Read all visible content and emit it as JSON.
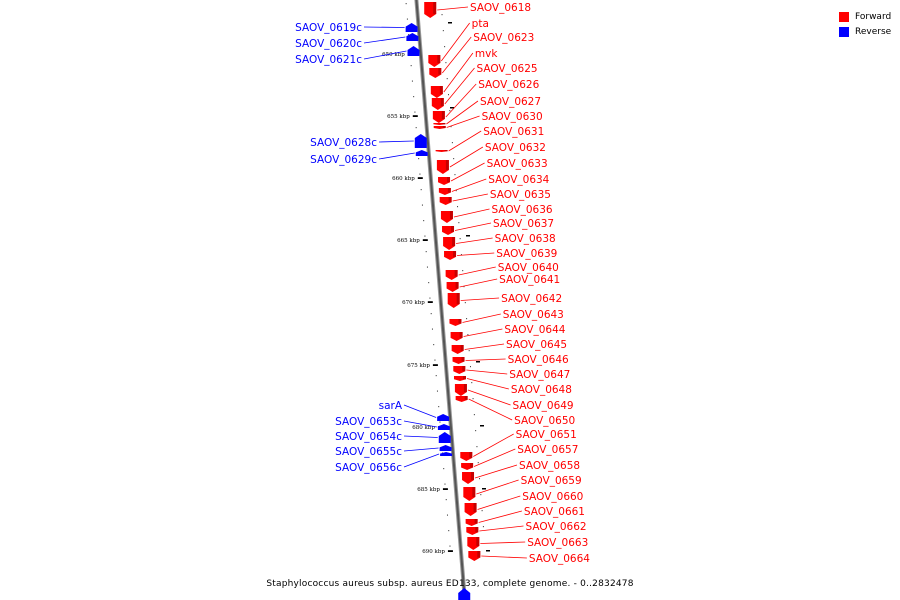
{
  "legend": {
    "forward_label": "Forward",
    "reverse_label": "Reverse",
    "forward_color": "#ff0000",
    "reverse_color": "#0000ff"
  },
  "caption": "Staphylococcus aureus subsp. aureus ED133, complete genome. - 0..2832478",
  "ticks": [
    {
      "label": "650 kbp",
      "kbp": 650
    },
    {
      "label": "655 kbp",
      "kbp": 655
    },
    {
      "label": "660 kbp",
      "kbp": 660
    },
    {
      "label": "665 kbp",
      "kbp": 665
    },
    {
      "label": "670 kbp",
      "kbp": 670
    },
    {
      "label": "675 kbp",
      "kbp": 675
    },
    {
      "label": "680 kbp",
      "kbp": 680
    },
    {
      "label": "685 kbp",
      "kbp": 685
    },
    {
      "label": "690 kbp",
      "kbp": 690
    }
  ],
  "forward_genes": [
    {
      "name": "SAOV_0618"
    },
    {
      "name": "pta"
    },
    {
      "name": "SAOV_0623"
    },
    {
      "name": "mvk"
    },
    {
      "name": "SAOV_0625"
    },
    {
      "name": "SAOV_0626"
    },
    {
      "name": "SAOV_0627"
    },
    {
      "name": "SAOV_0630"
    },
    {
      "name": "SAOV_0631"
    },
    {
      "name": "SAOV_0632"
    },
    {
      "name": "SAOV_0633"
    },
    {
      "name": "SAOV_0634"
    },
    {
      "name": "SAOV_0635"
    },
    {
      "name": "SAOV_0636"
    },
    {
      "name": "SAOV_0637"
    },
    {
      "name": "SAOV_0638"
    },
    {
      "name": "SAOV_0639"
    },
    {
      "name": "SAOV_0640"
    },
    {
      "name": "SAOV_0641"
    },
    {
      "name": "SAOV_0642"
    },
    {
      "name": "SAOV_0643"
    },
    {
      "name": "SAOV_0644"
    },
    {
      "name": "SAOV_0645"
    },
    {
      "name": "SAOV_0646"
    },
    {
      "name": "SAOV_0647"
    },
    {
      "name": "SAOV_0648"
    },
    {
      "name": "SAOV_0649"
    },
    {
      "name": "SAOV_0650"
    },
    {
      "name": "SAOV_0651"
    },
    {
      "name": "SAOV_0657"
    },
    {
      "name": "SAOV_0658"
    },
    {
      "name": "SAOV_0659"
    },
    {
      "name": "SAOV_0660"
    },
    {
      "name": "SAOV_0661"
    },
    {
      "name": "SAOV_0662"
    },
    {
      "name": "SAOV_0663"
    },
    {
      "name": "SAOV_0664"
    }
  ],
  "reverse_genes": [
    {
      "name": "SAOV_0619c"
    },
    {
      "name": "SAOV_0620c"
    },
    {
      "name": "SAOV_0621c"
    },
    {
      "name": "SAOV_0628c"
    },
    {
      "name": "SAOV_0629c"
    },
    {
      "name": "sarA"
    },
    {
      "name": "SAOV_0653c"
    },
    {
      "name": "SAOV_0654c"
    },
    {
      "name": "SAOV_0655c"
    },
    {
      "name": "SAOV_0656c"
    }
  ]
}
